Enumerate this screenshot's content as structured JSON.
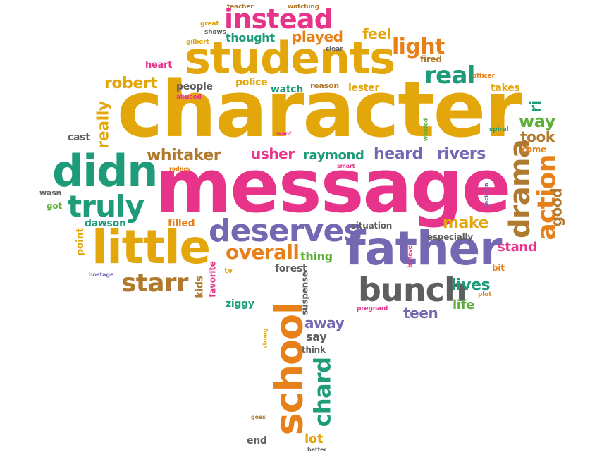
{
  "colors": {
    "gold": "#E3A70C",
    "pink": "#E8338A",
    "teal": "#1E9C7A",
    "purple": "#7667B3",
    "brown": "#B07A2E",
    "orange": "#E8801A",
    "gray": "#5E5E5E",
    "green": "#5FAE38"
  },
  "words": {
    "character": "character",
    "message": "message",
    "students": "students",
    "father": "father",
    "didn": "didn",
    "little": "little",
    "school": "school",
    "instead": "instead",
    "bunch": "bunch",
    "deserves": "deserves",
    "truly": "truly",
    "drama": "drama",
    "action": "action",
    "starr": "starr",
    "chard": "chard",
    "real": "real",
    "light": "light",
    "overall": "overall",
    "robert": "robert",
    "whitaker": "whitaker",
    "usher": "usher",
    "raymond": "raymond",
    "heard": "heard",
    "rivers": "rivers",
    "played": "played",
    "feel": "feel",
    "lives": "lives",
    "make": "make",
    "way": "way",
    "took": "took",
    "away": "away",
    "really": "really",
    "good": "good",
    "teen": "teen",
    "life": "life",
    "stand": "stand",
    "thought": "thought",
    "lot": "lot",
    "people": "people",
    "police": "police",
    "watch": "watch",
    "lester": "lester",
    "reason": "reason",
    "takes": "takes",
    "heart": "heart",
    "cast": "cast",
    "dawson": "dawson",
    "filled": "filled",
    "situation": "situation",
    "especially": "especially",
    "thing": "thing",
    "forest": "forest",
    "kids": "kids",
    "favorite": "favorite",
    "ziggy": "ziggy",
    "suspense": "suspense",
    "say": "say",
    "think": "think",
    "end": "end",
    "point": "point",
    "got": "got",
    "wasn": "wasn",
    "tv": "tv",
    "bit": "bit",
    "pregnant": "pregnant",
    "plot": "plot",
    "come": "come",
    "fired": "fired",
    "clear": "clear",
    "officer": "officer",
    "spiral": "spiral",
    "teacher": "teacher",
    "watching": "watching",
    "great": "great",
    "shows": "shows",
    "gilbert": "gilbert",
    "abused": "abused",
    "want": "want",
    "smart": "smart",
    "rodney": "rodney",
    "wanted": "wanted",
    "jackson": "jackson",
    "hostage": "hostage",
    "strong": "strong",
    "believe": "believe",
    "goes": "goes",
    "better": "better",
    "ri": "ri"
  }
}
